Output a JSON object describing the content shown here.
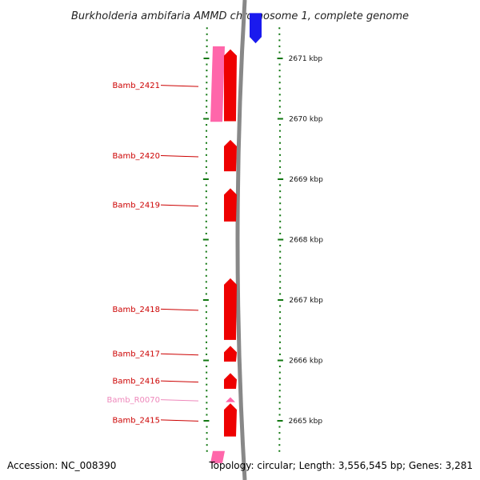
{
  "title": "Burkholderia ambifaria AMMD chromosome 1, complete genome",
  "accession": "Accession: NC_008390",
  "topology": "Topology: circular; Length: 3,556,545 bp; Genes: 3,281",
  "colors": {
    "gene": "#ee0000",
    "rna": "#ff66aa",
    "rna_label": "#ee88bb",
    "label": "#cc0000",
    "tick": "#117711",
    "backbone": "#888888",
    "neighbor": "#1a1aee"
  },
  "kbp_marks": [
    {
      "label": "2671 kbp",
      "kb": 2671
    },
    {
      "label": "2670 kbp",
      "kb": 2670
    },
    {
      "label": "2669 kbp",
      "kb": 2669
    },
    {
      "label": "2668 kbp",
      "kb": 2668
    },
    {
      "label": "2667 kbp",
      "kb": 2667
    },
    {
      "label": "2666 kbp",
      "kb": 2666
    },
    {
      "label": "2665 kbp",
      "kb": 2665
    }
  ],
  "genes": [
    {
      "id": "Bamb_2421",
      "label": "Bamb_2421",
      "type": "cds",
      "start_kb": 2669.96,
      "end_kb": 2671.15
    },
    {
      "id": "Bamb_2420",
      "label": "Bamb_2420",
      "type": "cds",
      "start_kb": 2669.13,
      "end_kb": 2669.65
    },
    {
      "id": "Bamb_2419",
      "label": "Bamb_2419",
      "type": "cds",
      "start_kb": 2668.3,
      "end_kb": 2668.85
    },
    {
      "id": "Bamb_2418",
      "label": "Bamb_2418",
      "type": "cds",
      "start_kb": 2666.34,
      "end_kb": 2667.36
    },
    {
      "id": "Bamb_2417",
      "label": "Bamb_2417",
      "type": "cds",
      "start_kb": 2665.98,
      "end_kb": 2666.24
    },
    {
      "id": "Bamb_2416",
      "label": "Bamb_2416",
      "type": "cds",
      "start_kb": 2665.53,
      "end_kb": 2665.79
    },
    {
      "id": "Bamb_R0070",
      "label": "Bamb_R0070",
      "type": "rna",
      "start_kb": 2665.31,
      "end_kb": 2665.39
    },
    {
      "id": "Bamb_2415",
      "label": "Bamb_2415",
      "type": "cds",
      "start_kb": 2664.74,
      "end_kb": 2665.29
    }
  ],
  "rna_blocks": [
    {
      "id": "rRNA-upper",
      "start_kb": 2669.95,
      "end_kb": 2671.2
    },
    {
      "id": "rRNA-lower",
      "start_kb": 2664.3,
      "end_kb": 2664.5
    }
  ],
  "neighbor_blocks": [
    {
      "id": "neighbor-gene-top",
      "start_kb": 2671.25,
      "end_kb": 2671.75
    }
  ]
}
